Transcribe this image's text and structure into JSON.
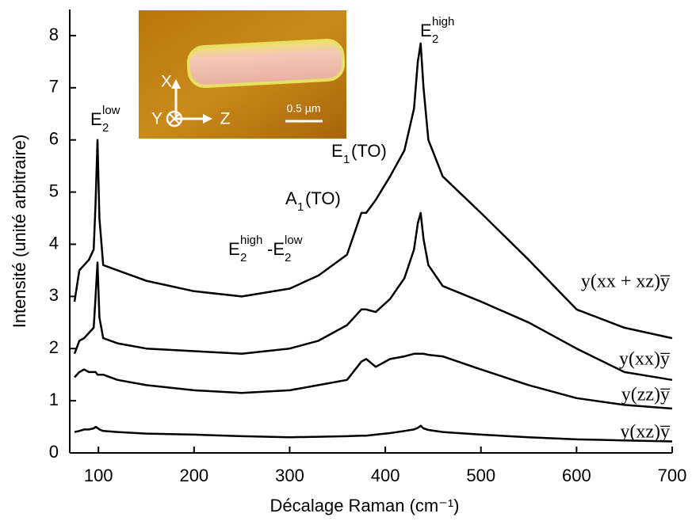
{
  "chart_data": {
    "type": "line",
    "xlabel": "Décalage Raman (cm⁻¹)",
    "ylabel": "Intensité (unité arbitraire)",
    "xlim": [
      70,
      700
    ],
    "ylim": [
      0,
      8.5
    ],
    "xticks": [
      100,
      200,
      300,
      400,
      500,
      600,
      700
    ],
    "yticks": [
      0,
      1,
      2,
      3,
      4,
      5,
      6,
      7,
      8
    ],
    "color": "#000000",
    "x": [
      75,
      80,
      85,
      90,
      95,
      97,
      99,
      101,
      105,
      120,
      150,
      200,
      250,
      300,
      330,
      360,
      375,
      380,
      390,
      405,
      420,
      430,
      434,
      437,
      440,
      445,
      460,
      500,
      550,
      600,
      650,
      700
    ],
    "series": [
      {
        "name": "y(xx + xz)y̅",
        "values": [
          2.9,
          3.5,
          3.6,
          3.7,
          3.9,
          4.8,
          6.0,
          4.5,
          3.6,
          3.5,
          3.3,
          3.1,
          3.0,
          3.15,
          3.4,
          3.8,
          4.6,
          4.6,
          4.85,
          5.3,
          5.8,
          6.6,
          7.5,
          7.85,
          7.0,
          6.0,
          5.3,
          4.6,
          3.7,
          2.75,
          2.4,
          2.2
        ]
      },
      {
        "name": "y(xx)y̅",
        "values": [
          1.9,
          2.15,
          2.2,
          2.3,
          2.4,
          3.0,
          3.65,
          2.6,
          2.2,
          2.1,
          2.0,
          1.95,
          1.9,
          2.0,
          2.15,
          2.45,
          2.75,
          2.75,
          2.7,
          2.95,
          3.35,
          3.9,
          4.4,
          4.6,
          4.1,
          3.6,
          3.2,
          2.9,
          2.5,
          2.0,
          1.55,
          1.4
        ]
      },
      {
        "name": "y(zz)y̅",
        "values": [
          1.45,
          1.55,
          1.6,
          1.55,
          1.55,
          1.55,
          1.5,
          1.5,
          1.5,
          1.4,
          1.3,
          1.2,
          1.15,
          1.2,
          1.3,
          1.4,
          1.75,
          1.8,
          1.65,
          1.8,
          1.85,
          1.9,
          1.9,
          1.9,
          1.9,
          1.88,
          1.85,
          1.6,
          1.3,
          1.05,
          0.92,
          0.85
        ]
      },
      {
        "name": "y(xz)y̅",
        "values": [
          0.4,
          0.42,
          0.45,
          0.45,
          0.47,
          0.5,
          0.48,
          0.45,
          0.42,
          0.4,
          0.37,
          0.35,
          0.32,
          0.3,
          0.31,
          0.32,
          0.33,
          0.33,
          0.35,
          0.38,
          0.42,
          0.45,
          0.48,
          0.52,
          0.47,
          0.44,
          0.4,
          0.35,
          0.3,
          0.26,
          0.24,
          0.22
        ]
      }
    ],
    "annotations": [
      {
        "text": "E",
        "sub": "2",
        "sup": "low"
      },
      {
        "text": "E",
        "sub": "2",
        "sup": "high"
      },
      {
        "text": "E",
        "sub": "1",
        "rest": "(TO)"
      },
      {
        "text": "A",
        "sub": "1",
        "rest": "(TO)"
      },
      {
        "text": "E",
        "sub": "2",
        "sup": "high",
        "rest": "-E",
        "sub2": "2",
        "sup2": "low"
      }
    ]
  },
  "inset": {
    "axes": [
      "X",
      "Y",
      "Z"
    ],
    "scale_bar": "0.5 µm"
  }
}
